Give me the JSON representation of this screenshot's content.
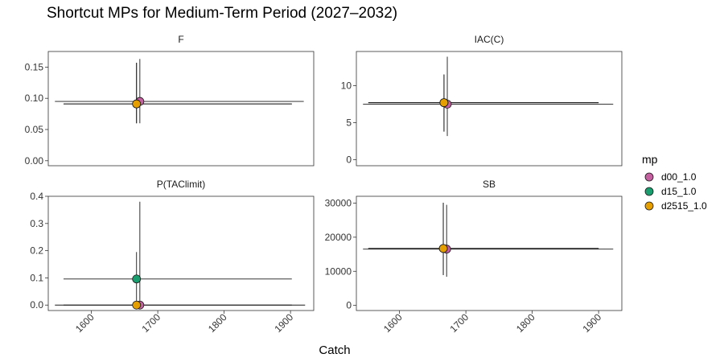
{
  "chart_data": {
    "type": "scatter",
    "title": "Shortcut MPs for Medium-Term Period (2027–2032)",
    "xlabel": "Catch",
    "xlim": [
      1535,
      1935
    ],
    "xticks": [
      1600,
      1700,
      1800,
      1900
    ],
    "legend": {
      "title": "mp",
      "position": "right",
      "items": [
        {
          "name": "d00_1.0",
          "color": "#c45fa0"
        },
        {
          "name": "d15_1.0",
          "color": "#1b9e6f"
        },
        {
          "name": "d2515_1.0",
          "color": "#e69f00"
        }
      ]
    },
    "panels": [
      {
        "name": "F",
        "ylim": [
          -0.008,
          0.175
        ],
        "yticks": [
          0.0,
          0.05,
          0.1,
          0.15
        ],
        "ytick_labels": [
          "0.00",
          "0.05",
          "0.10",
          "0.15"
        ],
        "points": [
          {
            "mp": "d00_1.0",
            "x": 1673,
            "y": 0.095,
            "xmin": 1545,
            "xmax": 1920,
            "ymin": 0.06,
            "ymax": 0.163
          },
          {
            "mp": "d15_1.0",
            "x": 1668,
            "y": 0.091,
            "xmin": 1558,
            "xmax": 1902,
            "ymin": 0.06,
            "ymax": 0.157
          },
          {
            "mp": "d2515_1.0",
            "x": 1668,
            "y": 0.091,
            "xmin": 1558,
            "xmax": 1902,
            "ymin": 0.06,
            "ymax": 0.157
          }
        ]
      },
      {
        "name": "IAC(C)",
        "ylim": [
          -0.8,
          14.6
        ],
        "yticks": [
          0,
          5,
          10
        ],
        "ytick_labels": [
          "0",
          "5",
          "10"
        ],
        "points": [
          {
            "mp": "d00_1.0",
            "x": 1672,
            "y": 7.5,
            "xmin": 1545,
            "xmax": 1922,
            "ymin": 3.2,
            "ymax": 13.9
          },
          {
            "mp": "d15_1.0",
            "x": 1667,
            "y": 7.7,
            "xmin": 1553,
            "xmax": 1900,
            "ymin": 3.8,
            "ymax": 11.5
          },
          {
            "mp": "d2515_1.0",
            "x": 1667,
            "y": 7.7,
            "xmin": 1553,
            "xmax": 1900,
            "ymin": 3.8,
            "ymax": 11.5
          }
        ]
      },
      {
        "name": "P(TAClimit)",
        "ylim": [
          -0.02,
          0.4
        ],
        "yticks": [
          0.0,
          0.1,
          0.2,
          0.3,
          0.4
        ],
        "ytick_labels": [
          "0.0",
          "0.1",
          "0.2",
          "0.3",
          "0.4"
        ],
        "points": [
          {
            "mp": "d00_1.0",
            "x": 1673,
            "y": 0.0,
            "xmin": 1545,
            "xmax": 1922,
            "ymin": 0.0,
            "ymax": 0.38
          },
          {
            "mp": "d15_1.0",
            "x": 1668,
            "y": 0.096,
            "xmin": 1558,
            "xmax": 1902,
            "ymin": 0.0,
            "ymax": 0.195
          },
          {
            "mp": "d2515_1.0",
            "x": 1668,
            "y": 0.0,
            "xmin": 1558,
            "xmax": 1902,
            "ymin": 0.0,
            "ymax": 0.0
          }
        ]
      },
      {
        "name": "SB",
        "ylim": [
          -1500,
          32000
        ],
        "yticks": [
          0,
          10000,
          20000,
          30000
        ],
        "ytick_labels": [
          "0",
          "10000",
          "20000",
          "30000"
        ],
        "points": [
          {
            "mp": "d00_1.0",
            "x": 1671,
            "y": 16500,
            "xmin": 1545,
            "xmax": 1922,
            "ymin": 8400,
            "ymax": 29500
          },
          {
            "mp": "d15_1.0",
            "x": 1666,
            "y": 16700,
            "xmin": 1553,
            "xmax": 1900,
            "ymin": 8900,
            "ymax": 30100
          },
          {
            "mp": "d2515_1.0",
            "x": 1666,
            "y": 16700,
            "xmin": 1553,
            "xmax": 1900,
            "ymin": 8900,
            "ymax": 30100
          }
        ]
      }
    ]
  }
}
